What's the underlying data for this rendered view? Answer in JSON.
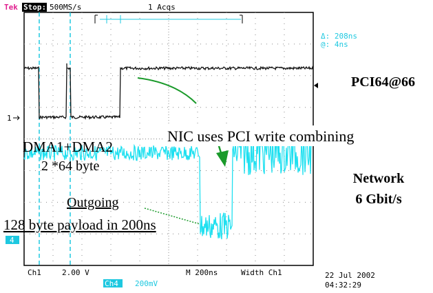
{
  "header": {
    "brand": "Tek",
    "state": "Stop:",
    "rate": "500MS/s",
    "acqs": "1 Acqs"
  },
  "cursor": {
    "delta": "Δ: 208ns",
    "at": "@: 4ns"
  },
  "markers": {
    "ch1": "1",
    "ch4": "4"
  },
  "annotations": {
    "pci": "PCI64@66",
    "nic": "NIC uses PCI write combining",
    "dma": "DMA1+DMA2",
    "dma_size": "2 *64 byte",
    "network": "Network",
    "network_rate": "6 Gbit/s",
    "outgoing": "Outgoing",
    "payload": "128 byte payload in 200ns"
  },
  "footer": {
    "ch1": "Ch1",
    "ch1_scale": "2.00 V",
    "ch4": "Ch4",
    "ch4_scale": "200mV",
    "timebase": "M 200ns",
    "trigger": "Width Ch1",
    "date": "22 Jul 2002",
    "time": "04:32:29"
  }
}
